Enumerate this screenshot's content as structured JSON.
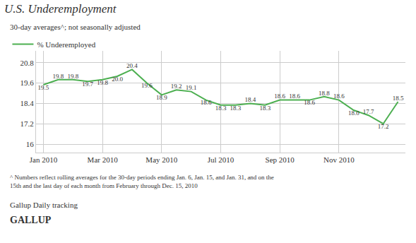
{
  "chart_data": {
    "type": "line",
    "title": "U.S. Underemployment",
    "subtitle": "30-day averages^; not seasonally adjusted",
    "annotations": [
      "^ Numbers reflect rolling averages for the 30-day periods ending Jan. 6, Jan. 15, and Jan. 31, and on the\n15th and the last day of each month from February through Dec. 15, 2010",
      "Gallup Daily tracking",
      "GALLUP"
    ],
    "categories": [
      "Jan 2010",
      null,
      null,
      null,
      "Mar 2010",
      null,
      null,
      null,
      "May 2010",
      null,
      null,
      null,
      "Jul 2010",
      null,
      null,
      null,
      "Sep 2010",
      null,
      null,
      null,
      "Nov 2010",
      null,
      null,
      null,
      null
    ],
    "series": [
      {
        "name": "% Underemployed",
        "color": "#4caf50",
        "values": [
          19.5,
          19.8,
          19.8,
          19.7,
          19.8,
          20.0,
          20.4,
          19.6,
          18.9,
          19.2,
          19.1,
          18.6,
          18.3,
          18.3,
          18.4,
          18.3,
          18.6,
          18.6,
          18.6,
          18.8,
          18.6,
          18.0,
          17.7,
          17.2,
          18.5
        ],
        "value_labels": [
          "19.5",
          "19.8",
          "19.8",
          "19.7",
          "19.8",
          "20.0",
          "20.4",
          "19.6",
          "18.9",
          "19.2",
          "19.1",
          "18.6",
          "18.3",
          "18.3",
          "18.4",
          "18.3",
          "18.6",
          "18.6",
          "18.6",
          "18.8",
          "18.6",
          "18.0",
          "17.7",
          "17.2",
          "18.5"
        ]
      }
    ],
    "ylim": [
      15.5,
      21.5
    ],
    "yticks": [
      16,
      17.2,
      18.4,
      19.6,
      20.8
    ],
    "grid": true,
    "legend": "top-left",
    "data_labels": true
  }
}
